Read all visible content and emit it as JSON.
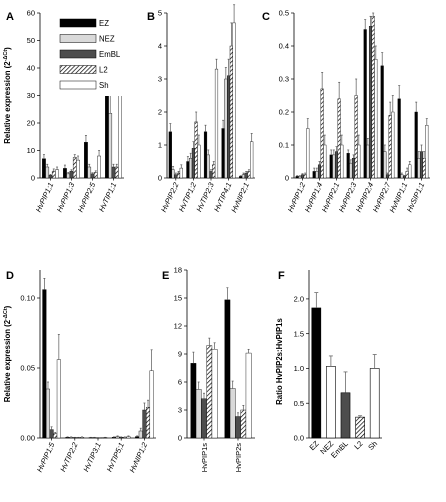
{
  "colors": {
    "EZ": "#000000",
    "NEZ": "#ffffff",
    "EmBL": "#4d4d4d",
    "L2": "hatch",
    "Sh": "#ffffff",
    "error": "#555555"
  },
  "legend": [
    "EZ",
    "NEZ",
    "EmBL",
    "L2",
    "Sh"
  ],
  "chart_data": [
    {
      "panel": "A",
      "type": "bar",
      "ylabel": "Relative expression (2^-ΔCt)",
      "ylim": [
        0,
        60
      ],
      "yticks": [
        0,
        10,
        20,
        30,
        40,
        50,
        60
      ],
      "categories": [
        "HvPIP1;1",
        "HvPIP1;3",
        "HvPIP2;5",
        "HvTIP1;1"
      ],
      "series": [
        {
          "name": "EZ",
          "values": [
            7,
            3.5,
            13,
            55
          ],
          "err": [
            1.5,
            1.2,
            2.5,
            3
          ]
        },
        {
          "name": "NEZ",
          "values": [
            4,
            1.5,
            4,
            23.5
          ],
          "err": [
            1,
            0.5,
            1,
            7
          ]
        },
        {
          "name": "EmBL",
          "values": [
            1,
            2.5,
            1.5,
            4
          ],
          "err": [
            0.3,
            0.5,
            0.4,
            1
          ]
        },
        {
          "name": "L2",
          "values": [
            2.5,
            7.5,
            2,
            4
          ],
          "err": [
            0.8,
            1,
            0.6,
            1
          ]
        },
        {
          "name": "Sh",
          "values": [
            3,
            6.5,
            8,
            37
          ],
          "err": [
            1,
            1.5,
            2,
            12
          ]
        }
      ]
    },
    {
      "panel": "B",
      "type": "bar",
      "ylim": [
        0,
        5
      ],
      "yticks": [
        0,
        1,
        2,
        3,
        4,
        5
      ],
      "categories": [
        "HvPIP2;2",
        "HvTIP1;2",
        "HvTIP2;3",
        "HvTIP4;1",
        "HvNIP2;1"
      ],
      "series": [
        {
          "name": "EZ",
          "values": [
            1.4,
            0.5,
            1.4,
            1.5,
            0.05
          ],
          "err": [
            0.25,
            0.15,
            0.2,
            0.25,
            0.02
          ]
        },
        {
          "name": "NEZ",
          "values": [
            0.25,
            0.6,
            0.7,
            3.0,
            0.1
          ],
          "err": [
            0.1,
            0.15,
            0.15,
            0.35,
            0.05
          ]
        },
        {
          "name": "EmBL",
          "values": [
            0.1,
            0.9,
            0.2,
            3.1,
            0.15
          ],
          "err": [
            0.05,
            0.2,
            0.05,
            0.5,
            0.05
          ]
        },
        {
          "name": "L2",
          "values": [
            0.15,
            1.7,
            0.4,
            4.0,
            0.2
          ],
          "err": [
            0.05,
            0.3,
            0.1,
            0.7,
            0.05
          ]
        },
        {
          "name": "Sh",
          "values": [
            0.3,
            1.0,
            3.3,
            4.7,
            1.1
          ],
          "err": [
            0.1,
            0.3,
            0.3,
            0.55,
            0.25
          ]
        }
      ]
    },
    {
      "panel": "C",
      "type": "bar",
      "ylim": [
        0,
        0.5
      ],
      "yticks": [
        0,
        0.1,
        0.2,
        0.3,
        0.4,
        0.5
      ],
      "categories": [
        "HvPIP1;2",
        "HvPIP1;4",
        "HvPIP2;1",
        "HvPIP2;3",
        "HvPIP2;4",
        "HvPIP2;7",
        "HvNIP1;1",
        "HvSIP1;1"
      ],
      "series": [
        {
          "name": "EZ",
          "values": [
            0.005,
            0.02,
            0.07,
            0.075,
            0.45,
            0.34,
            0.24,
            0.2
          ],
          "err": [
            0.002,
            0.01,
            0.015,
            0.01,
            0.03,
            0.04,
            0.04,
            0.03
          ]
        },
        {
          "name": "NEZ",
          "values": [
            0.005,
            0.02,
            0.07,
            0.045,
            0.1,
            0.08,
            0.01,
            0.06
          ],
          "err": [
            0.002,
            0.01,
            0.015,
            0.01,
            0.02,
            0.02,
            0.005,
            0.02
          ]
        },
        {
          "name": "EmBL",
          "values": [
            0.01,
            0.04,
            0.08,
            0.06,
            0.46,
            0.01,
            0.005,
            0.08
          ],
          "err": [
            0.003,
            0.01,
            0.015,
            0.01,
            0.03,
            0.005,
            0.003,
            0.02
          ]
        },
        {
          "name": "L2",
          "values": [
            0.01,
            0.27,
            0.24,
            0.25,
            0.49,
            0.19,
            0.02,
            0.06
          ],
          "err": [
            0.005,
            0.05,
            0.05,
            0.05,
            0.01,
            0.04,
            0.01,
            0.02
          ]
        },
        {
          "name": "Sh",
          "values": [
            0.15,
            0.1,
            0.1,
            0.1,
            0.36,
            0.2,
            0.04,
            0.16
          ],
          "err": [
            0.03,
            0.03,
            0.03,
            0.03,
            0.04,
            0.05,
            0.01,
            0.02
          ]
        }
      ]
    },
    {
      "panel": "D",
      "type": "bar",
      "ylabel": "Relative expression (2^-ΔCt)",
      "ylim": [
        0,
        0.12
      ],
      "yticks": [
        0,
        0.05,
        0.1
      ],
      "yticklabels": [
        "0.00",
        "0.05",
        "0.10"
      ],
      "categories": [
        "HvPIP1;5",
        "HvTIP2;2",
        "HvTIP3;1",
        "HvTIP5;1",
        "HvNIP1;2"
      ],
      "series": [
        {
          "name": "EZ",
          "values": [
            0.106,
            0.0005,
            0.0003,
            0.0005,
            0.001
          ],
          "err": [
            0.008,
            0.0003,
            0.0002,
            0.0003,
            0.0005
          ]
        },
        {
          "name": "NEZ",
          "values": [
            0.035,
            0.0005,
            0.0003,
            0.001,
            0.005
          ],
          "err": [
            0.005,
            0.0003,
            0.0002,
            0.0005,
            0.002
          ]
        },
        {
          "name": "EmBL",
          "values": [
            0.006,
            0.0003,
            0.0002,
            0.0005,
            0.02
          ],
          "err": [
            0.002,
            0.0002,
            0.0001,
            0.0003,
            0.005
          ]
        },
        {
          "name": "L2",
          "values": [
            0.003,
            0.0003,
            0.0002,
            0.0005,
            0.022
          ],
          "err": [
            0.001,
            0.0002,
            0.0001,
            0.0003,
            0.005
          ]
        },
        {
          "name": "Sh",
          "values": [
            0.056,
            0.0005,
            0.0003,
            0.001,
            0.048
          ],
          "err": [
            0.018,
            0.0003,
            0.0002,
            0.0005,
            0.015
          ]
        }
      ]
    },
    {
      "panel": "E",
      "type": "bar",
      "ylim": [
        0,
        18
      ],
      "yticks": [
        0,
        3,
        6,
        9,
        12,
        15,
        18
      ],
      "categories": [
        "HvPIP1s",
        "HvPIP2s"
      ],
      "series": [
        {
          "name": "EZ",
          "values": [
            8,
            14.8
          ],
          "err": [
            1.2,
            1.3
          ]
        },
        {
          "name": "NEZ",
          "values": [
            5.2,
            5.3
          ],
          "err": [
            0.8,
            0.8
          ]
        },
        {
          "name": "EmBL",
          "values": [
            4.2,
            2.3
          ],
          "err": [
            0.6,
            0.4
          ]
        },
        {
          "name": "L2",
          "values": [
            9.9,
            3.0
          ],
          "err": [
            0.8,
            0.5
          ]
        },
        {
          "name": "Sh",
          "values": [
            9.5,
            9.1
          ],
          "err": [
            0.7,
            0.4
          ]
        }
      ]
    },
    {
      "panel": "F",
      "type": "bar",
      "ylabel": "Ratio HvPIP2s:HvPIP1s",
      "ylim": [
        0,
        2.2
      ],
      "yticks": [
        0,
        0.5,
        1.0,
        1.5,
        2.0
      ],
      "yticklabels": [
        "0.0",
        "0.5",
        "1.0",
        "1.5",
        "2.0"
      ],
      "categories": [
        "EZ",
        "NEZ",
        "EmBL",
        "L2",
        "Sh"
      ],
      "values": [
        1.87,
        1.03,
        0.65,
        0.3,
        1.0
      ],
      "err": [
        0.22,
        0.15,
        0.3,
        0.02,
        0.2
      ]
    }
  ]
}
